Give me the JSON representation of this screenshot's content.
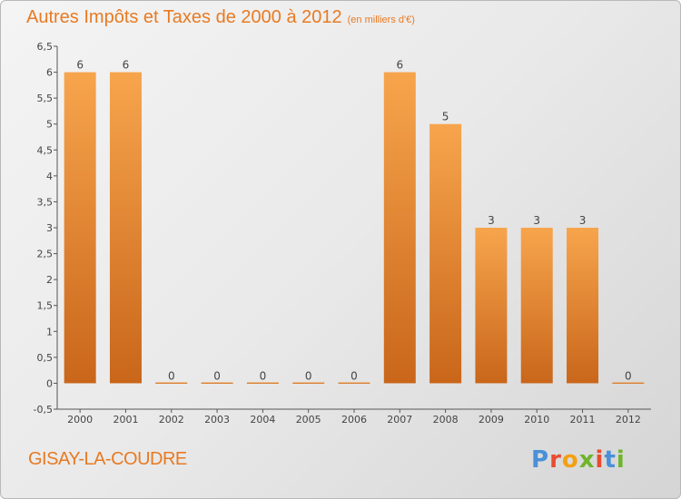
{
  "chart_data": {
    "type": "bar",
    "title": "Autres Impôts et Taxes de 2000 à 2012",
    "title_unit": "(en milliers d'€)",
    "categories": [
      "2000",
      "2001",
      "2002",
      "2003",
      "2004",
      "2005",
      "2006",
      "2007",
      "2008",
      "2009",
      "2010",
      "2011",
      "2012"
    ],
    "values": [
      6,
      6,
      0,
      0,
      0,
      0,
      0,
      6,
      5,
      3,
      3,
      3,
      0
    ],
    "ylim": [
      -0.5,
      6.5
    ],
    "y_ticks": [
      "-0,5",
      "0",
      "0,5",
      "1",
      "1,5",
      "2",
      "2,5",
      "3",
      "3,5",
      "4",
      "4,5",
      "5",
      "5,5",
      "6",
      "6,5"
    ],
    "grid": false,
    "bar_color": "#f0913b"
  },
  "footer": {
    "commune": "GISAY-LA-COUDRE",
    "logo_letters": [
      "P",
      "r",
      "o",
      "x",
      "i",
      "t",
      "i"
    ]
  }
}
